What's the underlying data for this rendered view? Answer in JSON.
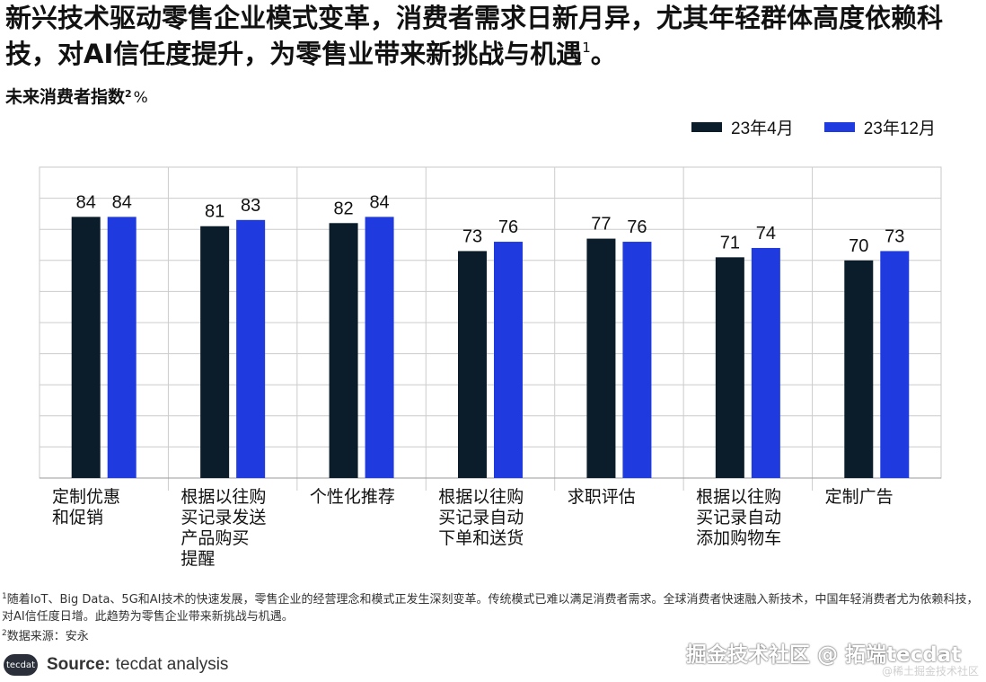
{
  "headline": {
    "text": "新兴技术驱动零售企业模式变革，消费者需求日新月异，尤其年轻群体高度依赖科技，对AI信任度提升，为零售业带来新挑战与机遇",
    "sup": "1",
    "end": "。"
  },
  "subtitle": {
    "text": "未来消费者指数",
    "sup": "2",
    "unit": "%"
  },
  "legend": [
    {
      "label": "23年4月",
      "color": "#0b1d2a"
    },
    {
      "label": "23年12月",
      "color": "#1f3be0"
    }
  ],
  "chart_data": {
    "type": "bar",
    "categories": [
      [
        "定制优惠",
        "和促销"
      ],
      [
        "根据以往购",
        "买记录发送",
        "产品购买",
        "提醒"
      ],
      [
        "个性化推荐"
      ],
      [
        "根据以往购",
        "买记录自动",
        "下单和送货"
      ],
      [
        "求职评估"
      ],
      [
        "根据以往购",
        "买记录自动",
        "添加购物车"
      ],
      [
        "定制广告"
      ]
    ],
    "series": [
      {
        "name": "23年4月",
        "color": "#0b1d2a",
        "values": [
          84,
          81,
          82,
          73,
          77,
          71,
          70
        ]
      },
      {
        "name": "23年12月",
        "color": "#1f3be0",
        "values": [
          84,
          83,
          84,
          76,
          76,
          74,
          73
        ]
      }
    ],
    "ylim": [
      0,
      100
    ],
    "grid": true,
    "legend_position": "top-right",
    "data_labels": true
  },
  "footnotes": [
    {
      "sup": "1",
      "text": "随着IoT、Big Data、5G和AI技术的快速发展，零售企业的经营理念和模式正发生深刻变革。传统模式已难以满足消费者需求。全球消费者快速融入新技术，中国年轻消费者尤为依赖科技，对AI信任度日增。此趋势为零售企业带来新挑战与机遇。"
    },
    {
      "sup": "2",
      "text": "数据来源：安永"
    }
  ],
  "source": {
    "logo": "tecdat",
    "label": "Source:",
    "value": "tecdat analysis"
  },
  "watermark": {
    "main": "掘金技术社区 @ 拓端tecdat",
    "small": "@稀土掘金技术社区"
  }
}
